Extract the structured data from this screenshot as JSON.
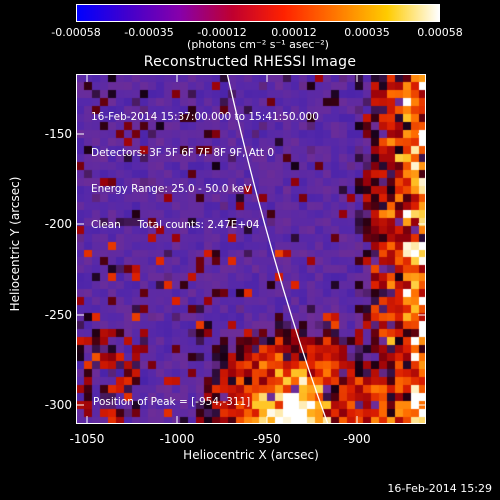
{
  "colorbar": {
    "ticks": [
      "-0.00058",
      "-0.00035",
      "-0.00012",
      "0.00012",
      "0.00035",
      "0.00058"
    ],
    "units": "(photons cm⁻² s⁻¹ asec⁻²)"
  },
  "plot": {
    "title": "Reconstructed RHESSI Image",
    "info": [
      "16-Feb-2014 15:37:00.000 to 15:41:50.000",
      "Detectors: 3F 5F 6F 7F 8F 9F, Att 0",
      "Energy Range: 25.0 - 50.0 keV",
      "Clean     Total counts: 2.47E+04"
    ],
    "peak": "Position of Peak = [-954,-311]"
  },
  "axes": {
    "xlabel": "Heliocentric X (arcsec)",
    "ylabel": "Heliocentric Y (arcsec)",
    "xticks": [
      "-1050",
      "-1000",
      "-950",
      "-900"
    ],
    "yticks": [
      "-150",
      "-200",
      "-250",
      "-300"
    ],
    "xlim": [
      -1065,
      -870
    ],
    "ylim": [
      -310,
      -120
    ]
  },
  "footer": {
    "timestamp": "16-Feb-2014 15:29"
  },
  "colors": {
    "colorbar_stops": [
      "#0000ff",
      "#4400cc",
      "#8800aa",
      "#c00030",
      "#ff2200",
      "#ff7700",
      "#ffcc00",
      "#ffffff"
    ]
  }
}
